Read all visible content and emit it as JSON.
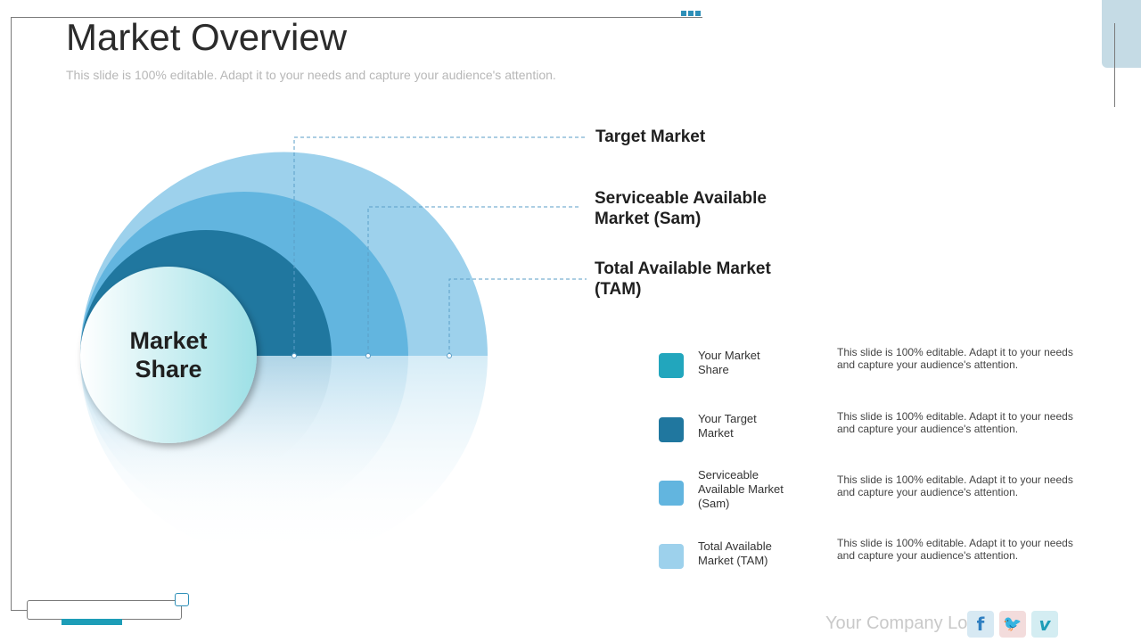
{
  "title": "Market Overview",
  "subtitle": "This slide is 100% editable. Adapt it to your needs and capture your audience's attention.",
  "center_label": "Market Share",
  "labels": {
    "target": "Target Market",
    "sam": "Serviceable Available Market (Sam)",
    "tam": "Total Available Market (TAM)"
  },
  "legend": [
    {
      "name": "Your Market Share",
      "description": "This slide is 100% editable. Adapt it to your needs and capture your audience's attention.",
      "color": "#22a6bd"
    },
    {
      "name": "Your Target Market",
      "description": "This slide is 100% editable. Adapt it to your needs and capture your audience's attention.",
      "color": "#20779f"
    },
    {
      "name": "Serviceable Available Market (Sam)",
      "description": "This slide is 100% editable. Adapt it to your needs and capture your audience's attention.",
      "color": "#62b5df"
    },
    {
      "name": "Total Available Market (TAM)",
      "description": "This slide is 100% editable. Adapt it to your needs and capture your audience's attention.",
      "color": "#9dd1ec"
    }
  ],
  "footer": {
    "logo_text": "Your Company Logo",
    "social": [
      {
        "icon": "facebook-icon",
        "glyph": "f",
        "color": "#2f7fc1",
        "bg": "#d7e9f3"
      },
      {
        "icon": "twitter-icon",
        "glyph": "🐦",
        "color": "#d63a3a",
        "bg": "#f3dcdc"
      },
      {
        "icon": "vimeo-icon",
        "glyph": "v",
        "color": "#1d9db7",
        "bg": "#d4edf2"
      }
    ]
  },
  "colors": {
    "tam": "#9dd1ec",
    "sam": "#62b5df",
    "target": "#20779f",
    "share_gradient_start": "#ffffff",
    "share_gradient_end": "#9de0e6",
    "connector": "#5a9ec7"
  }
}
